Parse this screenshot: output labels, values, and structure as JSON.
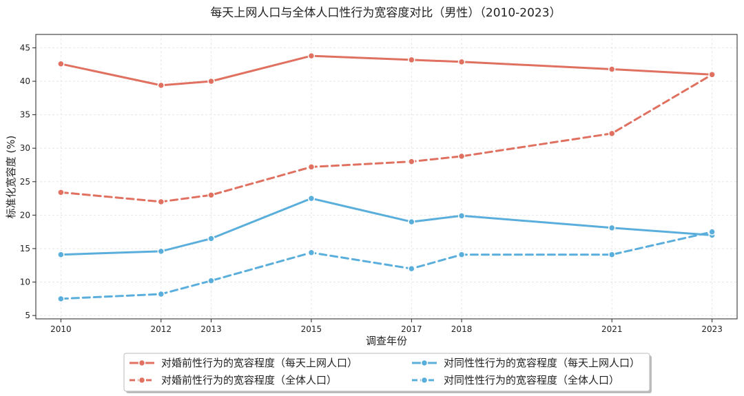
{
  "chart_data": {
    "type": "line",
    "title": "每天上网人口与全体人口性行为宽容度对比（男性）（2010-2023）",
    "xlabel": "调查年份",
    "ylabel": "标准化宽容度 (%)",
    "x": [
      2010,
      2012,
      2013,
      2015,
      2017,
      2018,
      2021,
      2023
    ],
    "xlim": [
      2009.5,
      2023.5
    ],
    "ylim": [
      4.5,
      47
    ],
    "yticks": [
      5,
      10,
      15,
      20,
      25,
      30,
      35,
      40,
      45
    ],
    "grid": true,
    "legend_position": "bottom-center",
    "series": [
      {
        "name": "对婚前性行为的宽容程度（每天上网人口）",
        "color": "#e07060",
        "dash": "solid",
        "values": [
          42.6,
          39.4,
          40.0,
          43.8,
          43.2,
          42.9,
          41.8,
          41.0
        ]
      },
      {
        "name": "对婚前性行为的宽容程度（全体人口）",
        "color": "#e07060",
        "dash": "dashed",
        "values": [
          23.4,
          22.0,
          23.0,
          27.2,
          28.0,
          28.8,
          32.2,
          41.0
        ]
      },
      {
        "name": "对同性性行为的宽容程度（每天上网人口）",
        "color": "#5aaedc",
        "dash": "solid",
        "values": [
          14.1,
          14.6,
          16.5,
          22.5,
          19.0,
          19.9,
          18.1,
          17.0
        ]
      },
      {
        "name": "对同性性行为的宽容程度（全体人口）",
        "color": "#5aaedc",
        "dash": "dashed",
        "values": [
          7.5,
          8.2,
          10.2,
          14.4,
          12.0,
          14.1,
          14.1,
          17.5
        ]
      }
    ]
  }
}
